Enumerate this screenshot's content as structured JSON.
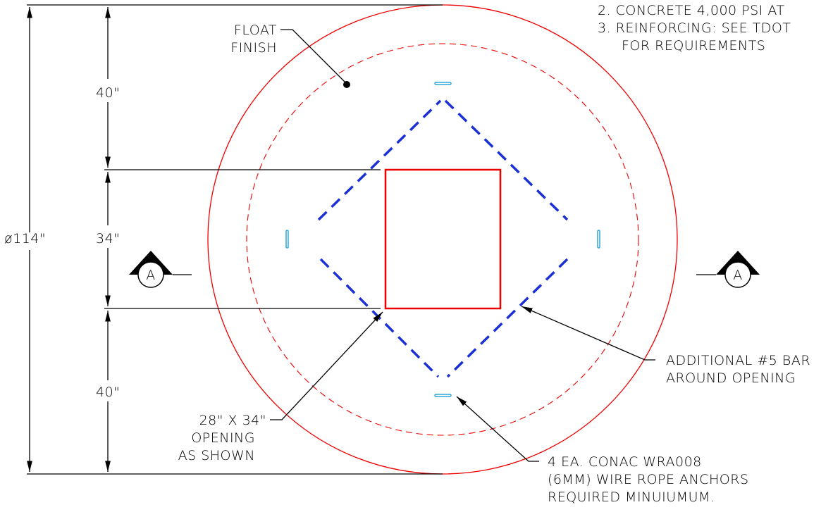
{
  "notes": [
    "2.  CONCRETE 4,000 PSI AT",
    "3.  REINFORCING: SEE TDOT",
    "FOR REQUIREMENTS"
  ],
  "float_label": [
    "FLOAT",
    "FINISH"
  ],
  "dimensions": {
    "top": "40\"",
    "middle": "34\"",
    "bottom": "40\"",
    "diameter": "ø114\""
  },
  "section_marker": "A",
  "opening_label": [
    "28\" X 34\"",
    "OPENING",
    "AS SHOWN"
  ],
  "bar_label": [
    "ADDITIONAL #5 BAR",
    "AROUND OPENING"
  ],
  "anchor_label": [
    "4 EA. CONAC WRA008",
    "(6MM) WIRE ROPE ANCHORS",
    "REQUIRED MINUIUMUM."
  ]
}
